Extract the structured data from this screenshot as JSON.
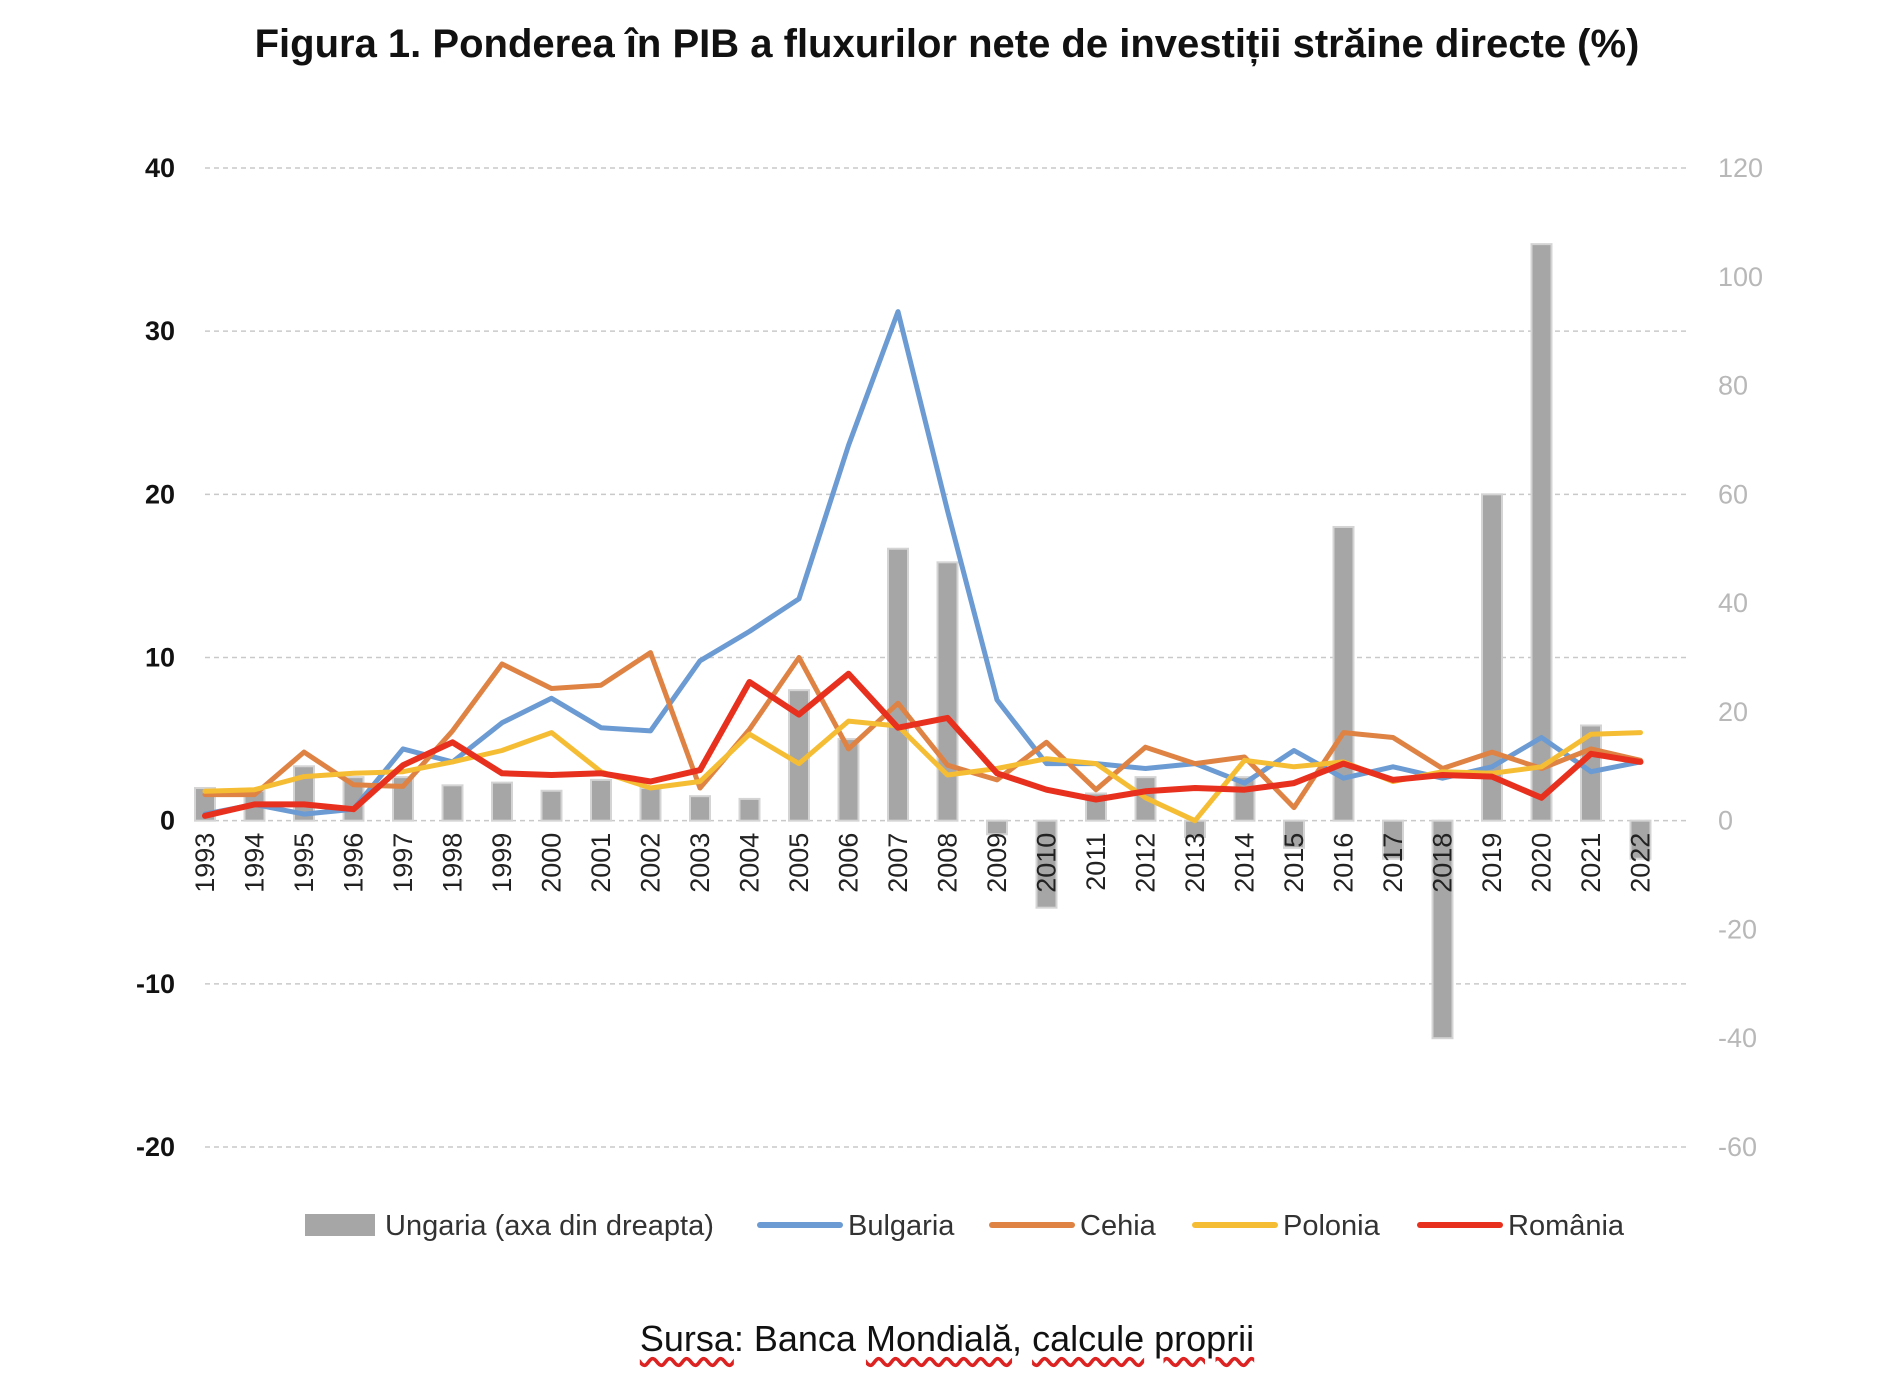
{
  "title": "Figura 1. Ponderea în PIB a fluxurilor nete de investiții străine directe (%)",
  "source": {
    "prefix": "Sursa",
    "separator": ": ",
    "middle": "Banca ",
    "underlined_word": "Mondială",
    "comma": ", ",
    "tail_a": "calcule",
    "space": " ",
    "tail_b": "proprii"
  },
  "chart_data": {
    "type": "line",
    "title": "",
    "categories": [
      "1993",
      "1994",
      "1995",
      "1996",
      "1997",
      "1998",
      "1999",
      "2000",
      "2001",
      "2002",
      "2003",
      "2004",
      "2005",
      "2006",
      "2007",
      "2008",
      "2009",
      "2010",
      "2011",
      "2012",
      "2013",
      "2014",
      "2015",
      "2016",
      "2017",
      "2018",
      "2019",
      "2020",
      "2021",
      "2022"
    ],
    "y_left": {
      "min": -20,
      "max": 40,
      "ticks": [
        -20,
        -10,
        0,
        10,
        20,
        30,
        40
      ]
    },
    "y_right": {
      "min": -60,
      "max": 120,
      "ticks": [
        -60,
        -40,
        -20,
        0,
        20,
        40,
        60,
        80,
        100,
        120
      ]
    },
    "grid": true,
    "legend_position": "bottom",
    "series": [
      {
        "name": "Ungaria (axa din dreapta)",
        "type": "bar",
        "axis": "right",
        "color": "#a6a6a6",
        "values": [
          6,
          5.5,
          10,
          8,
          8,
          6.5,
          7,
          5.5,
          7.5,
          6,
          4.5,
          4,
          24,
          15,
          50,
          47.5,
          -2.5,
          -16,
          5,
          8,
          -3,
          8,
          -5,
          54,
          -7,
          -40,
          60,
          106,
          17.5,
          -7
        ]
      },
      {
        "name": "Bulgaria",
        "type": "line",
        "axis": "left",
        "color": "#6b9bd2",
        "values": [
          0.4,
          1.0,
          0.4,
          0.7,
          4.4,
          3.6,
          6.0,
          7.5,
          5.7,
          5.5,
          9.8,
          11.6,
          13.6,
          23.0,
          31.2,
          19.0,
          7.4,
          3.5,
          3.5,
          3.2,
          3.5,
          2.3,
          4.3,
          2.6,
          3.3,
          2.6,
          3.3,
          5.1,
          3.0,
          3.6
        ]
      },
      {
        "name": "Cehia",
        "type": "line",
        "axis": "left",
        "color": "#de8344",
        "values": [
          1.6,
          1.6,
          4.2,
          2.2,
          2.1,
          5.5,
          9.6,
          8.1,
          8.3,
          10.3,
          2.0,
          5.6,
          10.0,
          4.4,
          7.2,
          3.4,
          2.5,
          4.8,
          1.9,
          4.5,
          3.5,
          3.9,
          0.8,
          5.4,
          5.1,
          3.2,
          4.2,
          3.2,
          4.4,
          3.7
        ]
      },
      {
        "name": "Polonia",
        "type": "line",
        "axis": "left",
        "color": "#f5bd33",
        "values": [
          1.8,
          1.9,
          2.7,
          2.9,
          3.0,
          3.6,
          4.3,
          5.4,
          3.0,
          2.0,
          2.4,
          5.3,
          3.5,
          6.1,
          5.8,
          2.8,
          3.2,
          3.8,
          3.5,
          1.4,
          0.0,
          3.7,
          3.3,
          3.6,
          2.4,
          3.0,
          2.9,
          3.3,
          5.3,
          5.4
        ]
      },
      {
        "name": "România",
        "type": "line",
        "axis": "left",
        "color": "#e8301e",
        "values": [
          0.3,
          1.0,
          1.0,
          0.7,
          3.4,
          4.8,
          2.9,
          2.8,
          2.9,
          2.4,
          3.1,
          8.5,
          6.5,
          9.0,
          5.7,
          6.3,
          2.9,
          1.9,
          1.3,
          1.8,
          2.0,
          1.9,
          2.3,
          3.5,
          2.5,
          2.8,
          2.7,
          1.4,
          4.1,
          3.6
        ]
      }
    ]
  }
}
